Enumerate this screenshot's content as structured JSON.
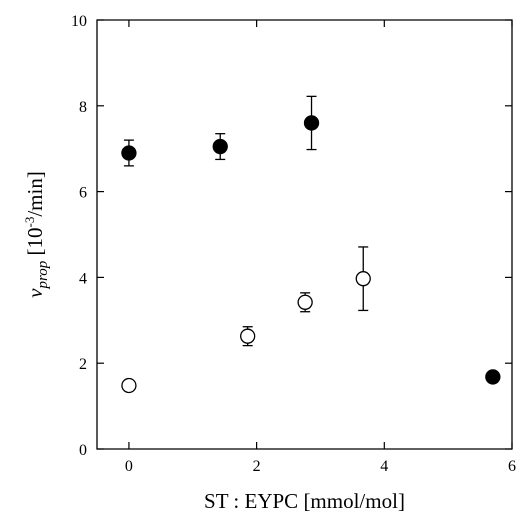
{
  "chart_data": {
    "type": "scatter",
    "title": "",
    "xlabel": "ST : EYPC [mmol/mol]",
    "ylabel_parts": {
      "symbol": "v",
      "subscript": "prop",
      "unit_open": " [10",
      "exponent": "-3",
      "unit_close": "/min]"
    },
    "xlim": [
      -0.5,
      6
    ],
    "ylim": [
      0,
      10
    ],
    "x_ticks": [
      0,
      2,
      4,
      6
    ],
    "y_ticks": [
      0,
      2,
      4,
      6,
      8,
      10
    ],
    "grid": false,
    "legend": "none",
    "series": [
      {
        "marker": "filled-circle",
        "points": [
          {
            "x": 0.0,
            "y": 6.9,
            "err": 0.3
          },
          {
            "x": 1.43,
            "y": 7.05,
            "err": 0.3
          },
          {
            "x": 2.86,
            "y": 7.6,
            "err": 0.62
          },
          {
            "x": 5.7,
            "y": 1.68,
            "err": 0
          }
        ]
      },
      {
        "marker": "open-circle",
        "points": [
          {
            "x": 0.0,
            "y": 1.48,
            "err": 0
          },
          {
            "x": 1.86,
            "y": 2.63,
            "err": 0.22
          },
          {
            "x": 2.76,
            "y": 3.42,
            "err": 0.22
          },
          {
            "x": 3.67,
            "y": 3.97,
            "err": 0.74
          }
        ]
      }
    ],
    "colors": {
      "filled": "#000000",
      "open_fill": "#ffffff",
      "stroke": "#000000"
    }
  }
}
